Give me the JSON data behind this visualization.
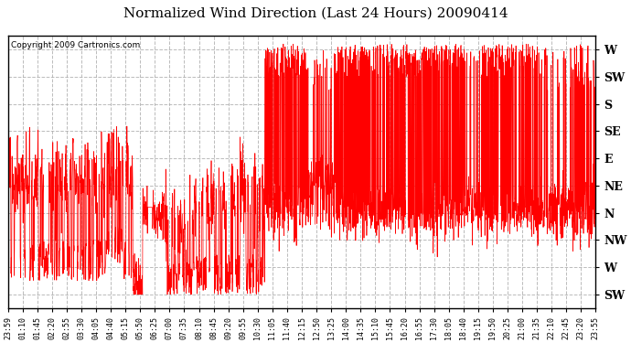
{
  "title": "Normalized Wind Direction (Last 24 Hours) 20090414",
  "copyright_text": "Copyright 2009 Cartronics.com",
  "line_color": "#FF0000",
  "bg_color": "#FFFFFF",
  "plot_bg_color": "#FFFFFF",
  "grid_color": "#AAAAAA",
  "grid_style": "--",
  "ytick_labels": [
    "W",
    "SW",
    "S",
    "SE",
    "E",
    "NE",
    "N",
    "NW",
    "W",
    "SW"
  ],
  "ytick_values": [
    9,
    8,
    7,
    6,
    5,
    4,
    3,
    2,
    1,
    0
  ],
  "ylim": [
    -0.5,
    9.5
  ],
  "xtick_labels": [
    "23:59",
    "01:10",
    "01:45",
    "02:20",
    "02:55",
    "03:30",
    "04:05",
    "04:40",
    "05:15",
    "05:50",
    "06:25",
    "07:00",
    "07:35",
    "08:10",
    "08:45",
    "09:20",
    "09:55",
    "10:30",
    "11:05",
    "11:40",
    "12:15",
    "12:50",
    "13:25",
    "14:00",
    "14:35",
    "15:10",
    "15:45",
    "16:20",
    "16:55",
    "17:30",
    "18:05",
    "18:40",
    "19:15",
    "19:50",
    "20:25",
    "21:00",
    "21:35",
    "22:10",
    "22:45",
    "23:20",
    "23:55"
  ],
  "seed": 42,
  "n_points": 2880,
  "figsize": [
    6.9,
    3.75
  ],
  "dpi": 100,
  "title_fontsize": 11,
  "ytick_fontsize": 9,
  "xtick_fontsize": 6,
  "copyright_fontsize": 6.5
}
